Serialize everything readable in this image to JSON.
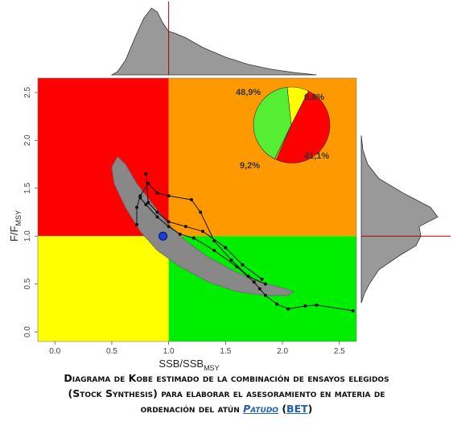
{
  "chart_data": {
    "type": "scatter",
    "title": "",
    "xlabel": "SSB/SSB",
    "xlabel_sub": "MSY",
    "ylabel": "F/F",
    "ylabel_sub": "MSY",
    "xlim": [
      -0.15,
      2.65
    ],
    "ylim": [
      -0.1,
      2.65
    ],
    "x_ticks": [
      "0.0",
      "0.5",
      "1.0",
      "1.5",
      "2.0",
      "2.5"
    ],
    "y_ticks": [
      "0.0",
      "0.5",
      "1.0",
      "1.5",
      "2.0",
      "2.5"
    ],
    "reference_lines": {
      "x": 1.0,
      "y": 1.0
    },
    "quadrant_colors": {
      "overfished_overfishing": "#ff0000",
      "overfishing_only": "#ff9900",
      "overfished_only": "#ffff00",
      "healthy": "#00ee00"
    },
    "cloud_color": "#888888",
    "current_point": {
      "x": 0.95,
      "y": 1.0,
      "color": "#1a3fd6"
    },
    "trajectories": [
      {
        "points": [
          [
            2.62,
            0.22
          ],
          [
            2.3,
            0.28
          ],
          [
            2.2,
            0.27
          ],
          [
            2.05,
            0.24
          ],
          [
            1.95,
            0.29
          ],
          [
            1.85,
            0.38
          ],
          [
            1.8,
            0.45
          ],
          [
            1.75,
            0.52
          ],
          [
            1.6,
            0.68
          ],
          [
            1.4,
            0.85
          ],
          [
            1.22,
            0.98
          ],
          [
            1.1,
            1.02
          ],
          [
            1.0,
            1.1
          ],
          [
            0.9,
            1.2
          ],
          [
            0.8,
            1.33
          ],
          [
            0.75,
            1.4
          ]
        ]
      },
      {
        "points": [
          [
            1.85,
            0.5
          ],
          [
            1.7,
            0.58
          ],
          [
            1.55,
            0.75
          ],
          [
            1.4,
            0.95
          ],
          [
            1.28,
            1.25
          ],
          [
            1.2,
            1.38
          ],
          [
            1.0,
            1.42
          ],
          [
            0.9,
            1.45
          ],
          [
            0.82,
            1.55
          ],
          [
            0.75,
            1.42
          ],
          [
            0.72,
            1.3
          ],
          [
            0.72,
            1.12
          ]
        ]
      },
      {
        "points": [
          [
            1.82,
            0.55
          ],
          [
            1.65,
            0.7
          ],
          [
            1.5,
            0.88
          ],
          [
            1.3,
            1.05
          ],
          [
            1.15,
            1.1
          ],
          [
            1.0,
            1.15
          ],
          [
            0.9,
            1.25
          ],
          [
            0.82,
            1.35
          ],
          [
            0.8,
            1.65
          ]
        ]
      }
    ],
    "pie": {
      "slices": [
        {
          "label": "48,9%",
          "value": 48.9,
          "color": "#ff0000"
        },
        {
          "label": "0,8%",
          "value": 0.8,
          "color": "#ff9900"
        },
        {
          "label": "41,1%",
          "value": 41.1,
          "color": "#55ee33"
        },
        {
          "label": "9,2%",
          "value": 9.2,
          "color": "#ffff00"
        }
      ]
    },
    "marginal_color": "#999999",
    "marginal_ref_color": "#aa0000"
  },
  "caption": {
    "line1": "Diagrama de Kobe estimado de la combinación de ensayos elegidos",
    "line2_sc": "(Stock Synthesis)",
    "line2_rest": " para elaborar el asesoramiento en materia de",
    "line3_start": "ordenación del atún ",
    "link_text": "Patudo",
    "paren_open": " (",
    "code": "BET",
    "paren_close": ")"
  }
}
